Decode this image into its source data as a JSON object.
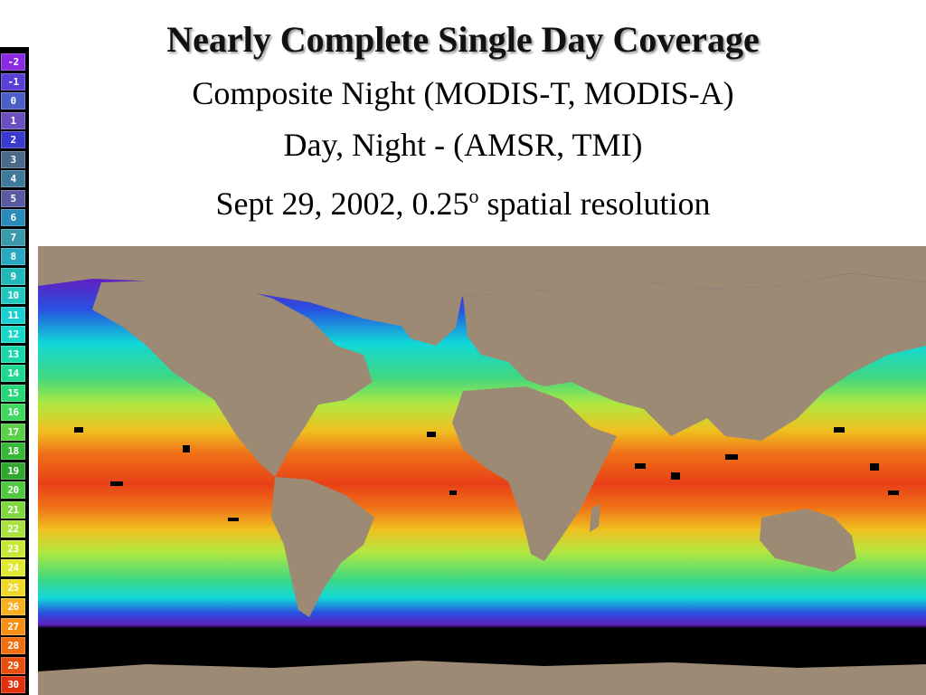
{
  "header": {
    "title": "Nearly Complete Single Day Coverage",
    "line1": "Composite Night (MODIS-T, MODIS-A)",
    "line2": "Day, Night - (AMSR, TMI)",
    "line3_prefix": "Sept 29, 2002, 0.25",
    "line3_sup": "o",
    "line3_suffix": " spatial resolution"
  },
  "legend": {
    "labels": [
      "-2",
      "-1",
      "0",
      "1",
      "2",
      "3",
      "4",
      "5",
      "6",
      "7",
      "8",
      "9",
      "10",
      "11",
      "12",
      "13",
      "14",
      "15",
      "16",
      "17",
      "18",
      "19",
      "20",
      "21",
      "22",
      "23",
      "24",
      "25",
      "26",
      "27",
      "28",
      "29",
      "30"
    ],
    "colors": [
      "#8a2be2",
      "#5a3fd6",
      "#4a60c8",
      "#6b4fbf",
      "#3a3ad0",
      "#4a6a8a",
      "#3f7a9a",
      "#5a5aa0",
      "#2a8ab8",
      "#3a9aaa",
      "#2aa8c0",
      "#25b8b8",
      "#20c8c0",
      "#1ad0d0",
      "#18d8c8",
      "#18d8a8",
      "#20d890",
      "#28d878",
      "#40d860",
      "#58d048",
      "#38b838",
      "#30a830",
      "#50c840",
      "#80d840",
      "#a8e040",
      "#c8e838",
      "#e0e830",
      "#f0d828",
      "#f8b020",
      "#f89018",
      "#f07010",
      "#e85010",
      "#e03010"
    ]
  },
  "map": {
    "land_color": "#9c8a74",
    "nodata_color": "#000000",
    "ocean_gradient_colors": [
      "#6020c0",
      "#2850e0",
      "#10d8d8",
      "#40d880",
      "#b0e840",
      "#f0c020",
      "#f07018",
      "#e84018"
    ]
  }
}
